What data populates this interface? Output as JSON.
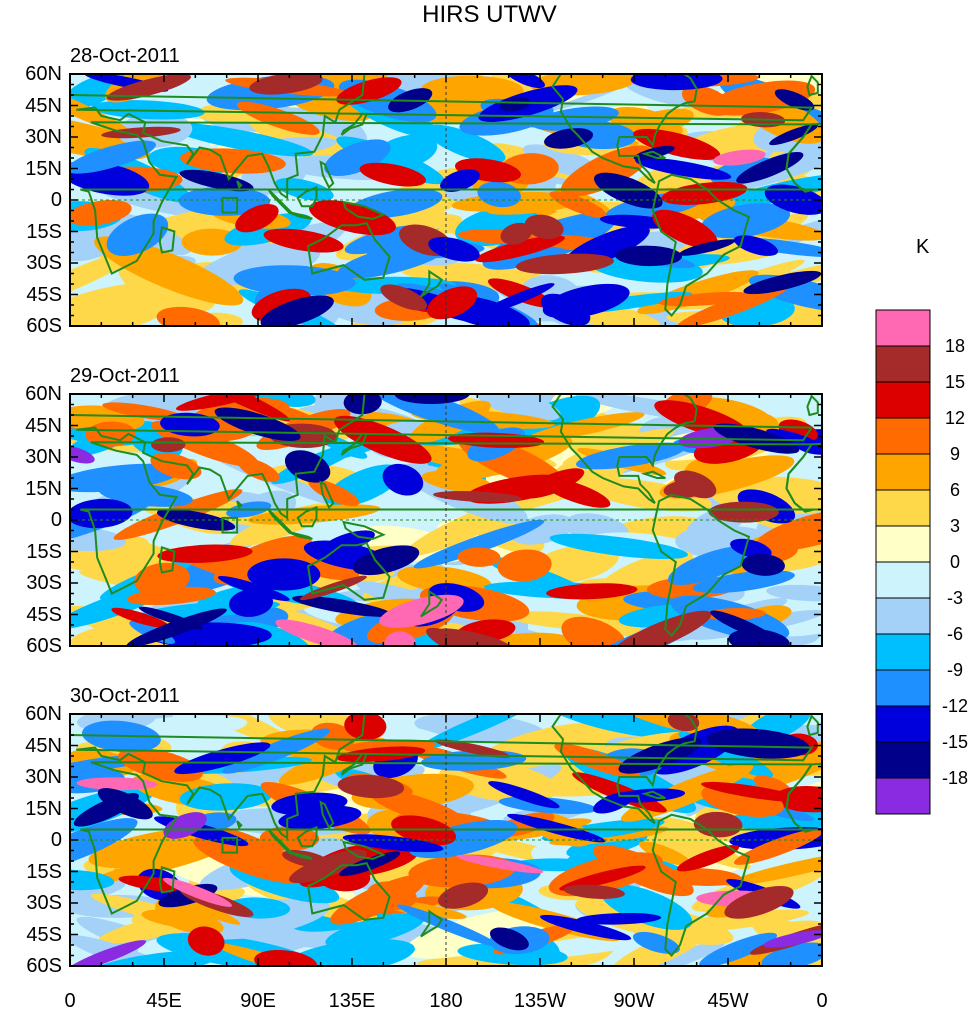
{
  "title": "HIRS UTWV",
  "chart_data": {
    "type": "heatmap",
    "title": "HIRS UTWV",
    "projection": "cylindrical equidistant",
    "panels": [
      {
        "date": "28-Oct-2011"
      },
      {
        "date": "29-Oct-2011"
      },
      {
        "date": "30-Oct-2011"
      }
    ],
    "lat_ticks": [
      "60N",
      "45N",
      "30N",
      "15N",
      "0",
      "15S",
      "30S",
      "45S",
      "60S"
    ],
    "lon_ticks": [
      "0",
      "45E",
      "90E",
      "135E",
      "180",
      "135W",
      "90W",
      "45W",
      "0"
    ],
    "lat_range": [
      -60,
      60
    ],
    "lon_range": [
      0,
      360
    ],
    "colorbar": {
      "unit": "K",
      "levels": [
        "18",
        "15",
        "12",
        "9",
        "6",
        "3",
        "0",
        "-3",
        "-6",
        "-9",
        "-12",
        "-15",
        "-18"
      ],
      "colors": [
        "#ff69b4",
        "#a52a2a",
        "#dd0000",
        "#ff6b00",
        "#ffa500",
        "#ffd84a",
        "#ffffc8",
        "#cdf3fd",
        "#a3d1f7",
        "#00bfff",
        "#1e90ff",
        "#0000dd",
        "#00008b",
        "#8a2be2"
      ]
    }
  }
}
